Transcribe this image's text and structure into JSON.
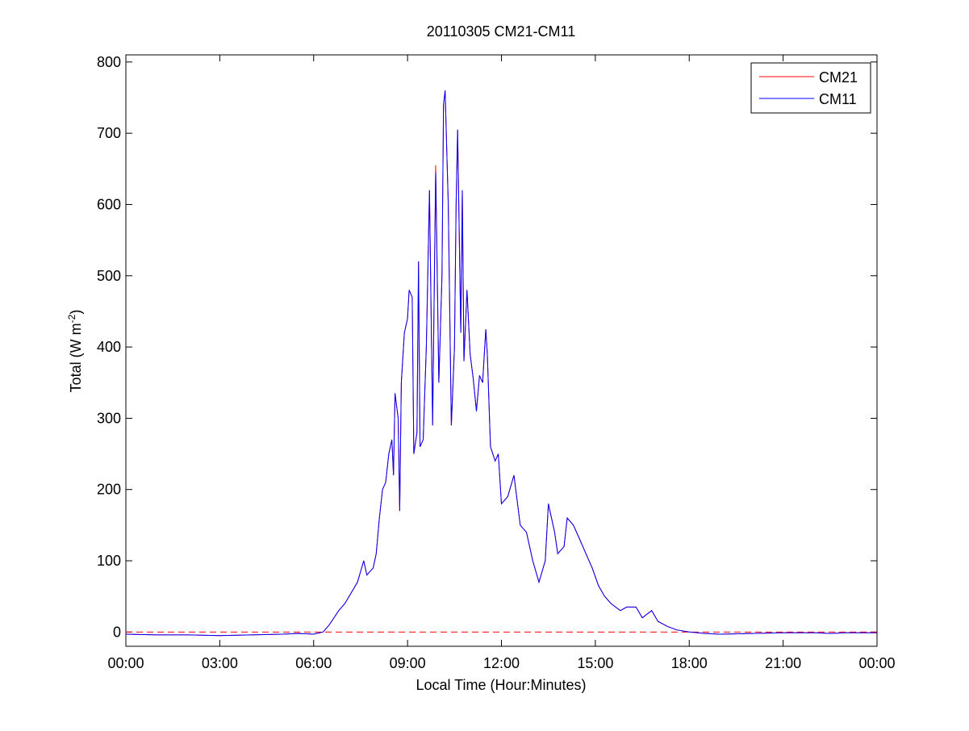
{
  "chart_data": {
    "type": "line",
    "title": "20110305 CM21-CM11",
    "xlabel": "Local Time (Hour:Minutes)",
    "ylabel": {
      "text": "Total (W m",
      "superscript": "-2",
      "suffix": ")"
    },
    "x": [
      0,
      1,
      2,
      3,
      4,
      5,
      5.5,
      6,
      6.3,
      6.5,
      6.8,
      7,
      7.2,
      7.4,
      7.6,
      7.7,
      7.9,
      8,
      8.1,
      8.2,
      8.3,
      8.4,
      8.5,
      8.55,
      8.6,
      8.7,
      8.75,
      8.8,
      8.9,
      9,
      9.05,
      9.15,
      9.2,
      9.3,
      9.35,
      9.4,
      9.5,
      9.6,
      9.7,
      9.8,
      9.9,
      10,
      10.1,
      10.15,
      10.2,
      10.3,
      10.4,
      10.5,
      10.55,
      10.6,
      10.7,
      10.75,
      10.8,
      10.9,
      11,
      11.1,
      11.2,
      11.3,
      11.4,
      11.5,
      11.55,
      11.65,
      11.8,
      11.9,
      12,
      12.2,
      12.4,
      12.6,
      12.8,
      13,
      13.2,
      13.4,
      13.5,
      13.7,
      13.8,
      14,
      14.1,
      14.3,
      14.5,
      14.7,
      14.9,
      15.1,
      15.3,
      15.5,
      15.8,
      16,
      16.3,
      16.5,
      16.8,
      17,
      17.3,
      17.6,
      18,
      18.5,
      19,
      20,
      21,
      22,
      22.5,
      23,
      24
    ],
    "series": [
      {
        "name": "CM21",
        "color": "#ff0000",
        "values": [
          -3,
          -4,
          -4,
          -5,
          -4,
          -3,
          -2,
          -3,
          0,
          10,
          30,
          40,
          55,
          70,
          100,
          80,
          90,
          110,
          160,
          200,
          210,
          250,
          270,
          220,
          335,
          300,
          170,
          350,
          420,
          440,
          480,
          470,
          250,
          280,
          520,
          260,
          270,
          400,
          620,
          290,
          655,
          350,
          500,
          740,
          760,
          600,
          290,
          400,
          600,
          705,
          420,
          620,
          380,
          480,
          390,
          355,
          310,
          360,
          350,
          425,
          390,
          260,
          240,
          250,
          180,
          190,
          220,
          150,
          140,
          100,
          70,
          100,
          180,
          140,
          110,
          120,
          160,
          150,
          130,
          110,
          90,
          65,
          50,
          40,
          30,
          35,
          35,
          20,
          30,
          15,
          8,
          3,
          0,
          -2,
          -3,
          -2,
          -1,
          -1,
          -2,
          -1,
          -1
        ]
      },
      {
        "name": "CM11",
        "color": "#0000ff",
        "values": [
          -3,
          -4,
          -4,
          -5,
          -4,
          -3,
          -2,
          -3,
          0,
          10,
          30,
          40,
          55,
          70,
          100,
          80,
          90,
          110,
          160,
          200,
          210,
          250,
          270,
          220,
          335,
          300,
          170,
          350,
          420,
          440,
          480,
          470,
          250,
          280,
          520,
          260,
          270,
          400,
          620,
          290,
          645,
          350,
          500,
          740,
          760,
          600,
          290,
          400,
          600,
          705,
          420,
          620,
          380,
          480,
          390,
          355,
          310,
          360,
          350,
          425,
          390,
          260,
          240,
          250,
          180,
          190,
          220,
          150,
          140,
          100,
          70,
          100,
          180,
          140,
          110,
          120,
          160,
          150,
          130,
          110,
          90,
          65,
          50,
          40,
          30,
          35,
          35,
          20,
          30,
          15,
          8,
          3,
          0,
          -2,
          -3,
          -2,
          -1,
          -1,
          -2,
          -1,
          -1
        ]
      }
    ],
    "reference_line": {
      "y": 0,
      "color": "#ff0000",
      "style": "dashed"
    },
    "xlim": [
      0,
      24
    ],
    "xticks": [
      {
        "value": 0,
        "label": "00:00"
      },
      {
        "value": 3,
        "label": "03:00"
      },
      {
        "value": 6,
        "label": "06:00"
      },
      {
        "value": 9,
        "label": "09:00"
      },
      {
        "value": 12,
        "label": "12:00"
      },
      {
        "value": 15,
        "label": "15:00"
      },
      {
        "value": 18,
        "label": "18:00"
      },
      {
        "value": 21,
        "label": "21:00"
      },
      {
        "value": 24,
        "label": "00:00"
      }
    ],
    "ylim": [
      -20,
      810
    ],
    "yticks": [
      0,
      100,
      200,
      300,
      400,
      500,
      600,
      700,
      800
    ],
    "grid": false,
    "legend": "top-right"
  }
}
